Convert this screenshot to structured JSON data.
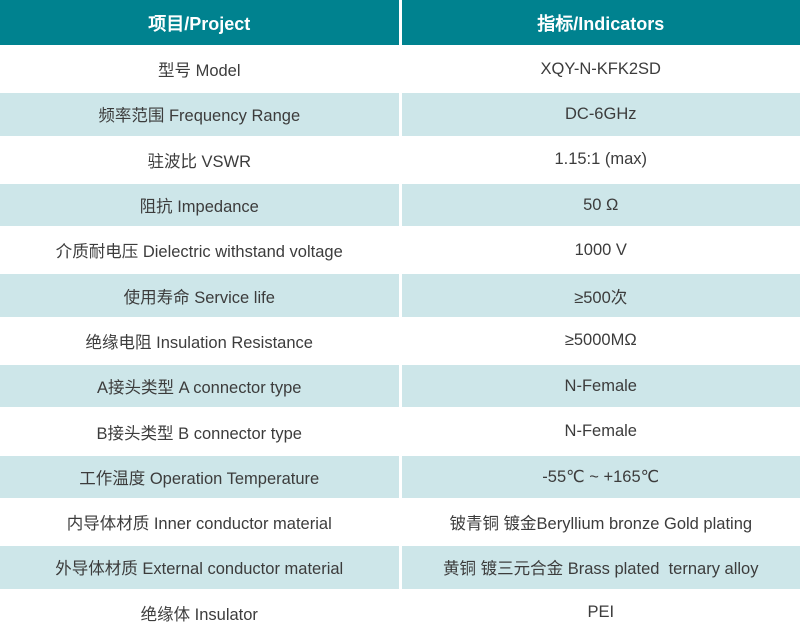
{
  "colors": {
    "header_bg": "#00828F",
    "stripe_bg": "#CDE6E9",
    "row_bg": "#FFFFFF",
    "header_text": "#FFFFFF",
    "body_text": "#3C3C3C",
    "border": "#FFFFFF"
  },
  "table": {
    "header": {
      "project": "项目/Project",
      "indicators": "指标/Indicators"
    },
    "rows": [
      {
        "project": "型号 Model",
        "indicator": "XQY-N-KFK2SD"
      },
      {
        "project": "频率范围 Frequency Range",
        "indicator": "DC-6GHz"
      },
      {
        "project": "驻波比 VSWR",
        "indicator": "1.15:1 (max)"
      },
      {
        "project": "阻抗 Impedance",
        "indicator": "50 Ω"
      },
      {
        "project": "介质耐电压 Dielectric withstand voltage",
        "indicator": "1000 V"
      },
      {
        "project": "使用寿命 Service life",
        "indicator": "≥500次"
      },
      {
        "project": "绝缘电阻 Insulation Resistance",
        "indicator": "≥5000MΩ"
      },
      {
        "project": "A接头类型 A connector type",
        "indicator": "N-Female"
      },
      {
        "project": "B接头类型 B connector type",
        "indicator": "N-Female"
      },
      {
        "project": "工作温度 Operation Temperature",
        "indicator": "-55℃ ~ +165℃"
      },
      {
        "project": "内导体材质 Inner conductor material",
        "indicator": "铍青铜 镀金Beryllium bronze Gold plating"
      },
      {
        "project": "外导体材质 External conductor material",
        "indicator": "黄铜 镀三元合金 Brass plated  ternary alloy"
      },
      {
        "project": "绝缘体 Insulator",
        "indicator": "PEI"
      }
    ]
  }
}
